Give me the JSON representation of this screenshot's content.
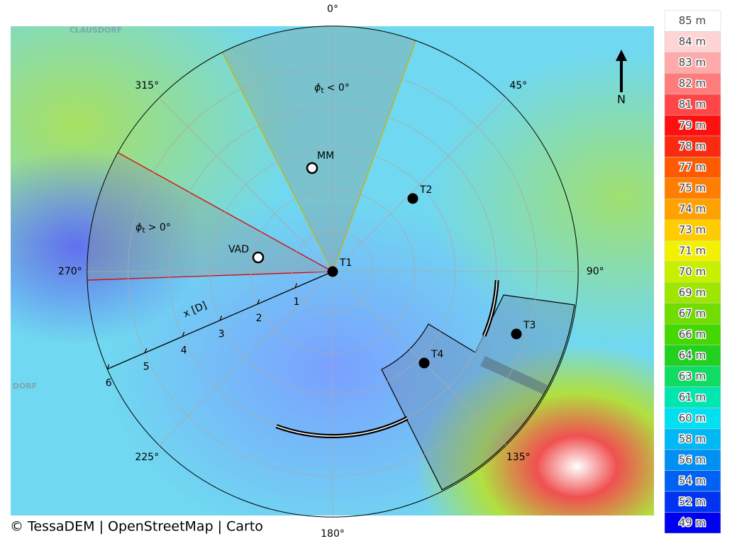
{
  "map": {
    "attribution": "© TessaDEM | OpenStreetMap | Carto",
    "place_labels": [
      "CLAUSDORF",
      "DORF"
    ],
    "north_label": "N",
    "bearing_labels": [
      {
        "value": 0,
        "label": "0°"
      },
      {
        "value": 45,
        "label": "45°"
      },
      {
        "value": 90,
        "label": "90°"
      },
      {
        "value": 135,
        "label": "135°"
      },
      {
        "value": 180,
        "label": "180°"
      },
      {
        "value": 225,
        "label": "225°"
      },
      {
        "value": 270,
        "label": "270°"
      },
      {
        "value": 315,
        "label": "315°"
      }
    ],
    "distance_axis": {
      "label": "x [D]",
      "ticks": [
        1,
        2,
        3,
        4,
        5,
        6
      ]
    },
    "sectors": [
      {
        "symbol": "ϕ",
        "subscript": "t",
        "condition": "< 0°",
        "color": "#c8b400"
      },
      {
        "symbol": "ϕ",
        "subscript": "t",
        "condition": "> 0°",
        "color": "#e00000"
      }
    ],
    "turbines": [
      "T1",
      "T2",
      "T3",
      "T4"
    ],
    "instruments": [
      "MM",
      "VAD"
    ],
    "legend": [
      {
        "label": "85 m",
        "color": "#ffffff"
      },
      {
        "label": "84 m",
        "color": "#ffd4d4"
      },
      {
        "label": "83 m",
        "color": "#ffaaaa"
      },
      {
        "label": "82 m",
        "color": "#ff7c7c"
      },
      {
        "label": "81 m",
        "color": "#ff4646"
      },
      {
        "label": "79 m",
        "color": "#ff1010"
      },
      {
        "label": "78 m",
        "color": "#f82a10"
      },
      {
        "label": "77 m",
        "color": "#ff5a00"
      },
      {
        "label": "75 m",
        "color": "#ff7e00"
      },
      {
        "label": "74 m",
        "color": "#ffa200"
      },
      {
        "label": "73 m",
        "color": "#ffcc00"
      },
      {
        "label": "71 m",
        "color": "#f2f200"
      },
      {
        "label": "70 m",
        "color": "#c8ee00"
      },
      {
        "label": "69 m",
        "color": "#9ee600"
      },
      {
        "label": "67 m",
        "color": "#70dc00"
      },
      {
        "label": "66 m",
        "color": "#44d800"
      },
      {
        "label": "64 m",
        "color": "#22d020"
      },
      {
        "label": "63 m",
        "color": "#10dc64"
      },
      {
        "label": "61 m",
        "color": "#00e6b0"
      },
      {
        "label": "60 m",
        "color": "#00e0f0"
      },
      {
        "label": "58 m",
        "color": "#00b8f4"
      },
      {
        "label": "56 m",
        "color": "#0090f4"
      },
      {
        "label": "54 m",
        "color": "#0062f4"
      },
      {
        "label": "52 m",
        "color": "#0034f0"
      },
      {
        "label": "49 m",
        "color": "#0000f0"
      }
    ]
  }
}
